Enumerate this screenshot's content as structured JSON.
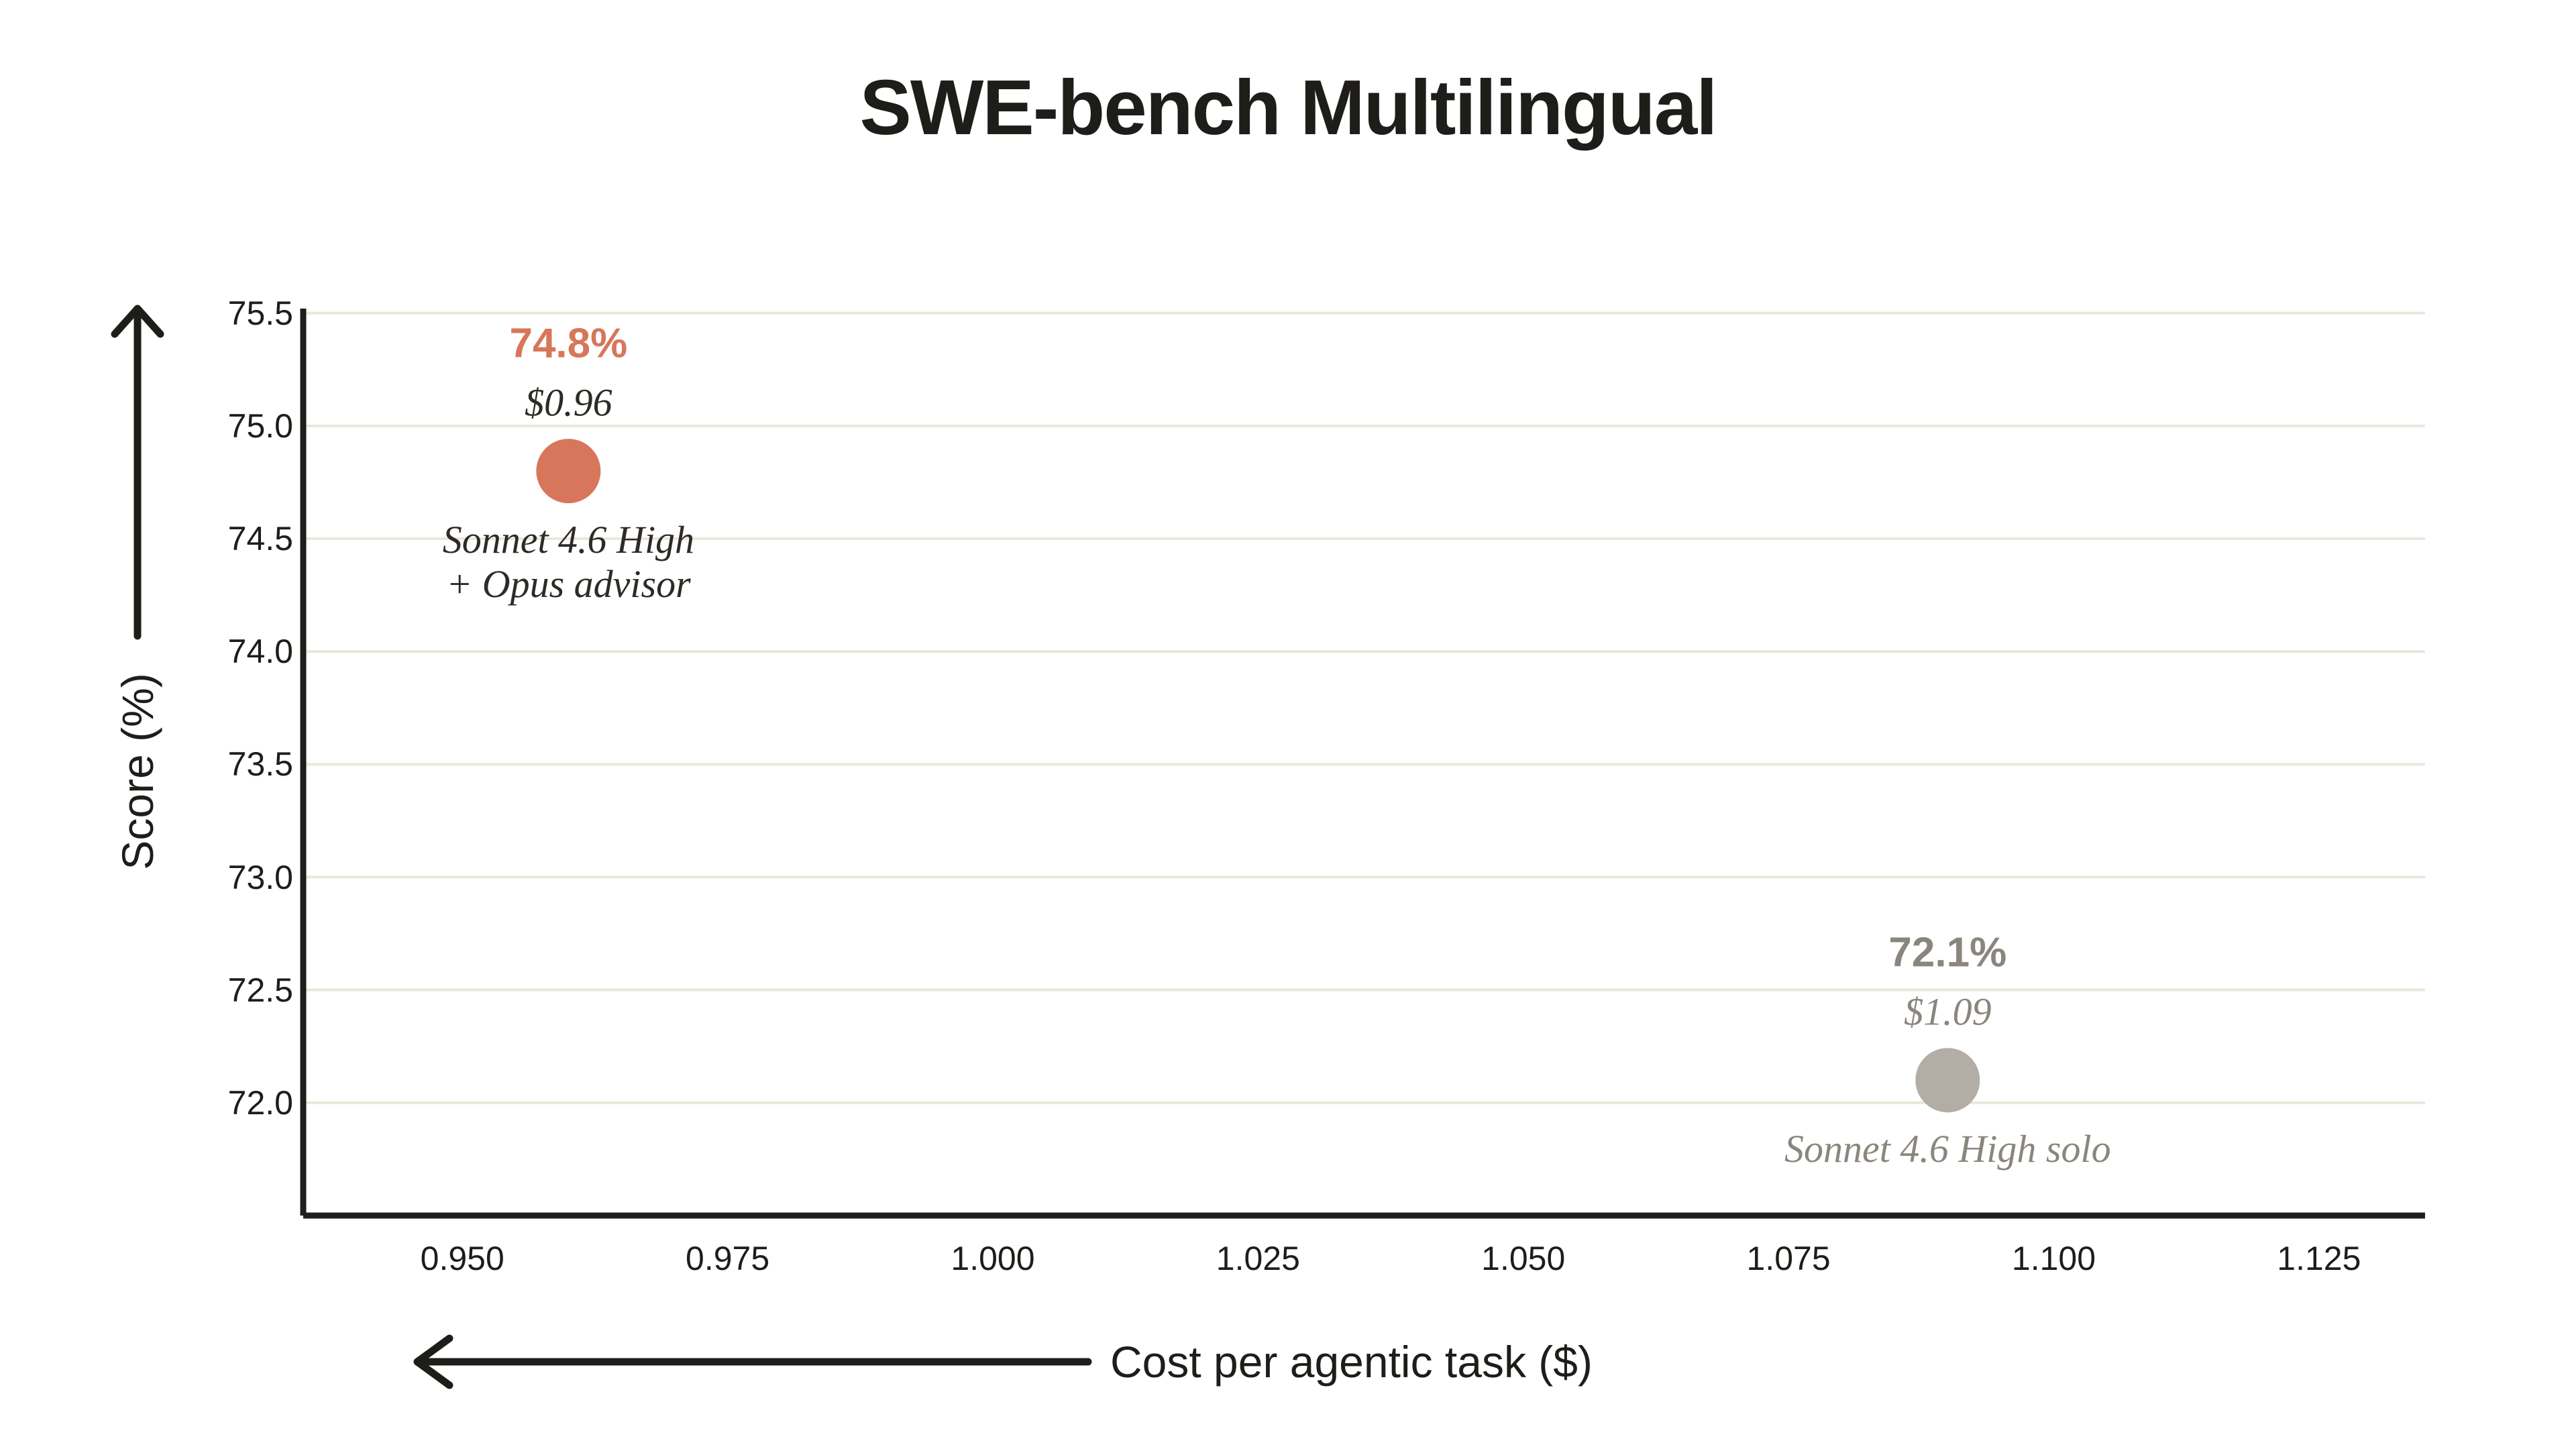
{
  "page": {
    "background": "#FFFFFF"
  },
  "colors": {
    "text_primary": "#1F1D1A",
    "axis": "#1F1D1A",
    "gridline": "#EAE7DB",
    "accent_orange": "#D7765A",
    "gray_dot": "#B2AEA5",
    "gray_text": "#8A867E",
    "dark_detail_text": "#2E2B26"
  },
  "chart_data": {
    "type": "scatter",
    "title": "SWE-bench Multilingual",
    "xlabel": "Cost per agentic task ($)",
    "ylabel": "Score (%)",
    "x_axis_arrow": "left",
    "y_axis_arrow": "up",
    "grid": "horizontal-only",
    "legend": "none",
    "x_ticks": [
      "0.950",
      "0.975",
      "1.000",
      "1.025",
      "1.050",
      "1.075",
      "1.100",
      "1.125"
    ],
    "y_ticks": [
      "75.5",
      "75.0",
      "74.5",
      "74.0",
      "73.5",
      "73.0",
      "72.5",
      "72.0"
    ],
    "xlim": [
      0.935,
      1.135
    ],
    "ylim": [
      71.5,
      75.52
    ],
    "points": [
      {
        "name_lines": [
          "Sonnet 4.6 High",
          "+ Opus advisor"
        ],
        "score_pct": 74.8,
        "cost_usd": 0.96,
        "score_label": "74.8%",
        "cost_label": "$0.96",
        "dot_color": "#D7765A",
        "score_label_color": "#D7765A",
        "detail_color": "#2E2B26"
      },
      {
        "name_lines": [
          "Sonnet 4.6 High solo"
        ],
        "score_pct": 72.1,
        "cost_usd": 1.09,
        "score_label": "72.1%",
        "cost_label": "$1.09",
        "dot_color": "#B2AEA5",
        "score_label_color": "#8A867E",
        "detail_color": "#8A867E"
      }
    ]
  }
}
